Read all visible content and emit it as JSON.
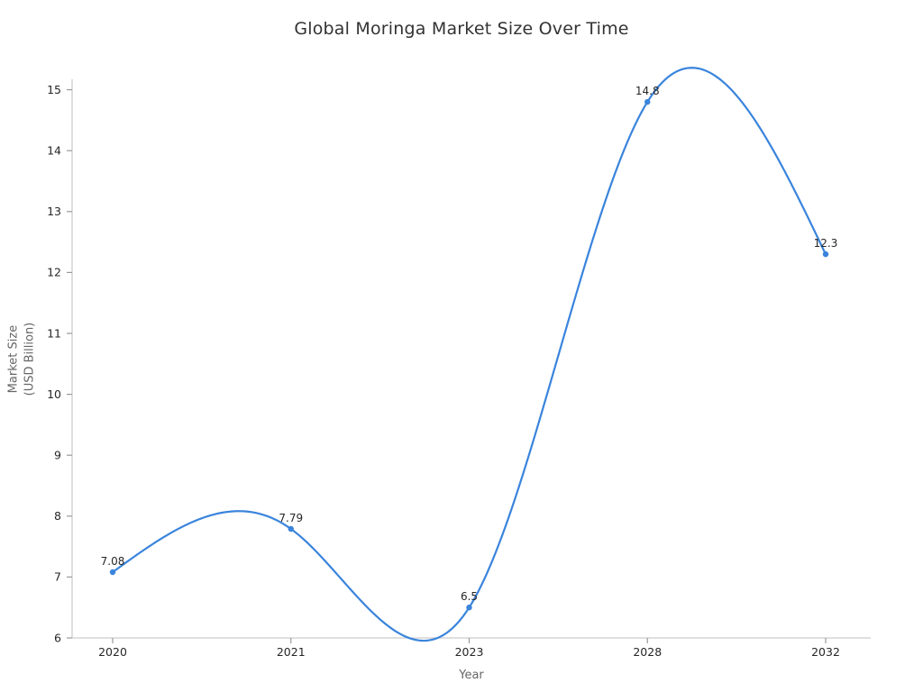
{
  "chart_data": {
    "type": "line",
    "title": "Global Moringa Market Size Over Time",
    "xlabel": "Year",
    "ylabel_lines": [
      "Market Size",
      "(USD Billion)"
    ],
    "categories": [
      "2020",
      "2021",
      "2023",
      "2028",
      "2032"
    ],
    "values": [
      7.08,
      7.79,
      6.5,
      14.8,
      12.3
    ],
    "point_labels": [
      "7.08",
      "7.79",
      "6.5",
      "14.8",
      "12.3"
    ],
    "ylim": [
      6,
      15
    ],
    "yticks": [
      6,
      7,
      8,
      9,
      10,
      11,
      12,
      13,
      14,
      15
    ],
    "x_axis_type": "categorical-even-spacing",
    "smooth_spline": true,
    "grid": false,
    "legend": "none",
    "colors": {
      "line": "#3a84dc",
      "marker": "#3a84dc",
      "spine": "#cccccc",
      "tick": "#999999",
      "tick_label": "#262626",
      "title": "#333333",
      "axis_label": "#666666",
      "annotation": "#262626",
      "background": "#ffffff"
    }
  }
}
